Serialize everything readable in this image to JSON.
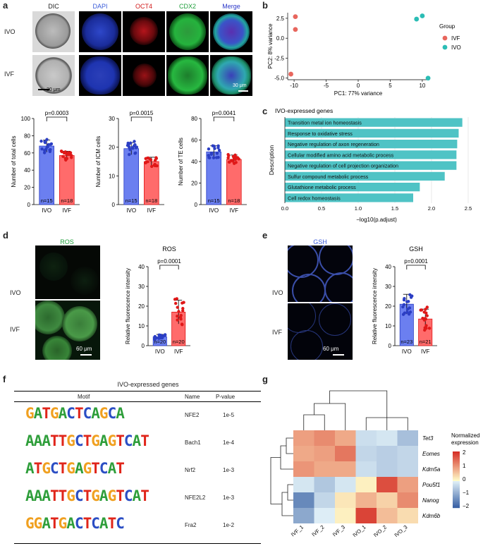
{
  "panels": {
    "a": "a",
    "b": "b",
    "c": "c",
    "d": "d",
    "e": "e",
    "f": "f",
    "g": "g"
  },
  "panel_a": {
    "channels": [
      "DIC",
      "DAPI",
      "OCT4",
      "CDX2",
      "Merge"
    ],
    "channel_colors": [
      "#222222",
      "#3a5bd9",
      "#d11a1a",
      "#1e9e3a",
      "#2a36c8"
    ],
    "rows": [
      "IVO",
      "IVF"
    ],
    "scale_dic": "30 μm",
    "scale_merge": "30 μm",
    "bars": [
      {
        "ylabel": "Number of total cells",
        "p": "p=0.0003",
        "ylim": [
          0,
          100
        ],
        "yticks": [
          "0",
          "20",
          "40",
          "60",
          "80",
          "100"
        ],
        "ivo_mean": 68,
        "ivf_mean": 57,
        "n_ivo": "n=15",
        "n_ivf": "n=18"
      },
      {
        "ylabel": "Number of ICM cells",
        "p": "p=0.0015",
        "ylim": [
          0,
          30
        ],
        "yticks": [
          "0",
          "10",
          "20",
          "30"
        ],
        "ivo_mean": 19.5,
        "ivf_mean": 15,
        "n_ivo": "n=15",
        "n_ivf": "n=18"
      },
      {
        "ylabel": "Number of TE cells",
        "p": "p=0.0041",
        "ylim": [
          0,
          80
        ],
        "yticks": [
          "0",
          "20",
          "40",
          "60",
          "80"
        ],
        "ivo_mean": 49,
        "ivf_mean": 42,
        "n_ivo": "n=15",
        "n_ivf": "n=18"
      }
    ],
    "categories": [
      "IVO",
      "IVF"
    ]
  },
  "chart_data": [
    {
      "type": "scatter",
      "xlabel": "PC1: 77% variance",
      "ylabel": "PC2: 8% variance",
      "xticks": [
        "-10",
        "-5",
        "0",
        "5",
        "10"
      ],
      "yticks": [
        "-5.0",
        "-2.5",
        "0.0",
        "2.5"
      ],
      "xlim": [
        -11,
        11
      ],
      "ylim": [
        -5.2,
        3.2
      ],
      "legend_title": "Group",
      "series": [
        {
          "name": "IVF",
          "color": "#e8665d",
          "points": [
            [
              -9.8,
              2.7
            ],
            [
              -9.8,
              1.1
            ],
            [
              -10.5,
              -4.5
            ]
          ]
        },
        {
          "name": "IVO",
          "color": "#2bbdb5",
          "points": [
            [
              9.1,
              2.4
            ],
            [
              10.0,
              2.8
            ],
            [
              10.9,
              -5.0
            ]
          ]
        }
      ]
    },
    {
      "type": "bar",
      "title": "IVO-expressed genes",
      "ylabel": "Description",
      "xlabel": "−log10(p.adjust)",
      "xticks": [
        "0.0",
        "0.5",
        "1.0",
        "1.5",
        "2.0",
        "2.5"
      ],
      "xlim": [
        0,
        2.5
      ],
      "categories": [
        "Transition metal ion homeostasis",
        "Response to oxidative stress",
        "Negative regulation of axon regeneration",
        "Cellular modified amino acid metabolic process",
        "Negative regulation of cell projection organization",
        "Sulfur compound metabolic process",
        "Glutathione metabolic process",
        "Cell redox homeostasis"
      ],
      "values": [
        2.42,
        2.37,
        2.35,
        2.34,
        2.34,
        2.18,
        1.84,
        1.75
      ],
      "color": "#4fc3c5"
    },
    {
      "type": "bar",
      "title": "ROS",
      "ylabel": "Relative fluorescence intensity",
      "categories": [
        "IVO",
        "IVF"
      ],
      "values": [
        4.5,
        17
      ],
      "ylim": [
        0,
        40
      ],
      "yticks": [
        "0",
        "10",
        "20",
        "30",
        "40"
      ],
      "p": "p=0.0001",
      "n": [
        "n=20",
        "n=20"
      ]
    },
    {
      "type": "bar",
      "title": "GSH",
      "ylabel": "Relative fluorescence intensity",
      "categories": [
        "IVO",
        "IVF"
      ],
      "values": [
        21,
        13.5
      ],
      "ylim": [
        0,
        40
      ],
      "yticks": [
        "0",
        "10",
        "20",
        "30",
        "40"
      ],
      "p": "p=0.0001",
      "n": [
        "n=23",
        "n=21"
      ]
    },
    {
      "type": "heatmap",
      "columns": [
        "IVF_1",
        "IVF_2",
        "IVF_3",
        "IVO_1",
        "IVO_2",
        "IVO_3"
      ],
      "rows": [
        "Tet3",
        "Eomes",
        "Kdm5a",
        "Pou5f1",
        "Nanog",
        "Kdm6b"
      ],
      "values": [
        [
          0.9,
          1.1,
          0.8,
          -0.3,
          -0.2,
          -0.7
        ],
        [
          0.8,
          0.9,
          1.3,
          -0.4,
          -0.5,
          -0.4
        ],
        [
          1.0,
          0.8,
          0.8,
          -0.3,
          -0.5,
          -0.4
        ],
        [
          -0.2,
          -0.6,
          -0.2,
          0.1,
          1.7,
          0.9
        ],
        [
          -1.4,
          -0.4,
          0.2,
          0.7,
          0.4,
          1.1
        ],
        [
          -1.0,
          -0.1,
          0.1,
          1.8,
          0.6,
          0.3
        ]
      ],
      "legend_title": "Normalized\nexpression",
      "legend_ticks": [
        "2",
        "1",
        "0",
        "−1",
        "−2"
      ]
    }
  ],
  "panel_d": {
    "channel": "ROS",
    "rows": [
      "IVO",
      "IVF"
    ],
    "scale": "60 μm"
  },
  "panel_e": {
    "channel": "GSH",
    "rows": [
      "IVO",
      "IVF"
    ],
    "scale": "60 μm"
  },
  "panel_f": {
    "title": "IVO-expressed genes",
    "headers": [
      "Motif",
      "Name",
      "P-value"
    ],
    "rows": [
      {
        "motif": "GATGACTCAGCA",
        "name": "NFE2",
        "p": "1e-5"
      },
      {
        "motif": "AAATTGCTGAGTCAT",
        "name": "Bach1",
        "p": "1e-4"
      },
      {
        "motif": "ATGCTGAGTCAT",
        "name": "Nrf2",
        "p": "1e-3"
      },
      {
        "motif": "AAATTGCTGAGTCAT",
        "name": "NFE2L2",
        "p": "1e-3"
      },
      {
        "motif": "GGATGACTCATC",
        "name": "Fra2",
        "p": "1e-2"
      }
    ]
  }
}
